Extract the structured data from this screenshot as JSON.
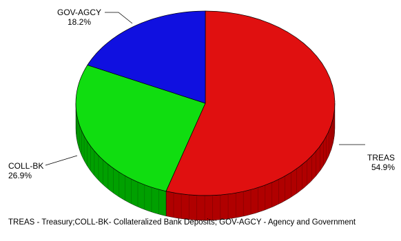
{
  "chart_data": {
    "type": "pie",
    "title": "",
    "slices": [
      {
        "name": "TREAS",
        "percent_label": "54.9%",
        "value": 54.9,
        "color": "#e01010",
        "side": "#b00000"
      },
      {
        "name": "COLL-BK",
        "percent_label": "26.9%",
        "value": 26.9,
        "color": "#10dd10",
        "side": "#00a000"
      },
      {
        "name": "GOV-AGCY",
        "percent_label": "18.2%",
        "value": 18.2,
        "color": "#1010e0",
        "side": "#0000a0"
      }
    ],
    "note": "TREAS - Treasury;COLL-BK- Collateralized Bank Deposits; GOV-AGCY - Agency and Government"
  }
}
